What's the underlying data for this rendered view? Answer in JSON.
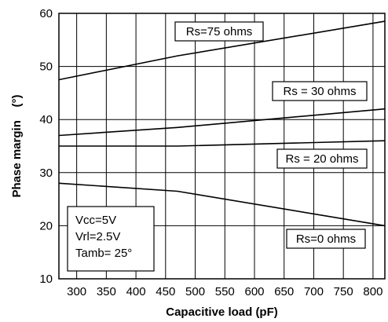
{
  "chart_data": {
    "type": "line",
    "xlabel": "Capacitive load (pF)",
    "ylabel": "Phase margin    (°)",
    "xlim": [
      270,
      820
    ],
    "ylim": [
      10,
      60
    ],
    "x_ticks": [
      300,
      350,
      400,
      450,
      500,
      550,
      600,
      650,
      700,
      750,
      800
    ],
    "y_ticks": [
      10,
      20,
      30,
      40,
      50,
      60
    ],
    "grid": true,
    "series": [
      {
        "name": "Rs=75 ohms",
        "x": [
          270,
          470,
          820
        ],
        "y": [
          47.5,
          52.0,
          58.5
        ]
      },
      {
        "name": "Rs = 30 ohms",
        "x": [
          270,
          470,
          820
        ],
        "y": [
          37.0,
          38.5,
          42.0
        ]
      },
      {
        "name": "Rs = 20 ohms",
        "x": [
          270,
          470,
          820
        ],
        "y": [
          35.0,
          35.0,
          36.0
        ]
      },
      {
        "name": "Rs=0 ohms",
        "x": [
          270,
          470,
          820
        ],
        "y": [
          28.0,
          26.5,
          20.0
        ]
      }
    ],
    "conditions": [
      "Vcc=5V",
      "Vrl=2.5V",
      "Tamb=  25°"
    ]
  }
}
